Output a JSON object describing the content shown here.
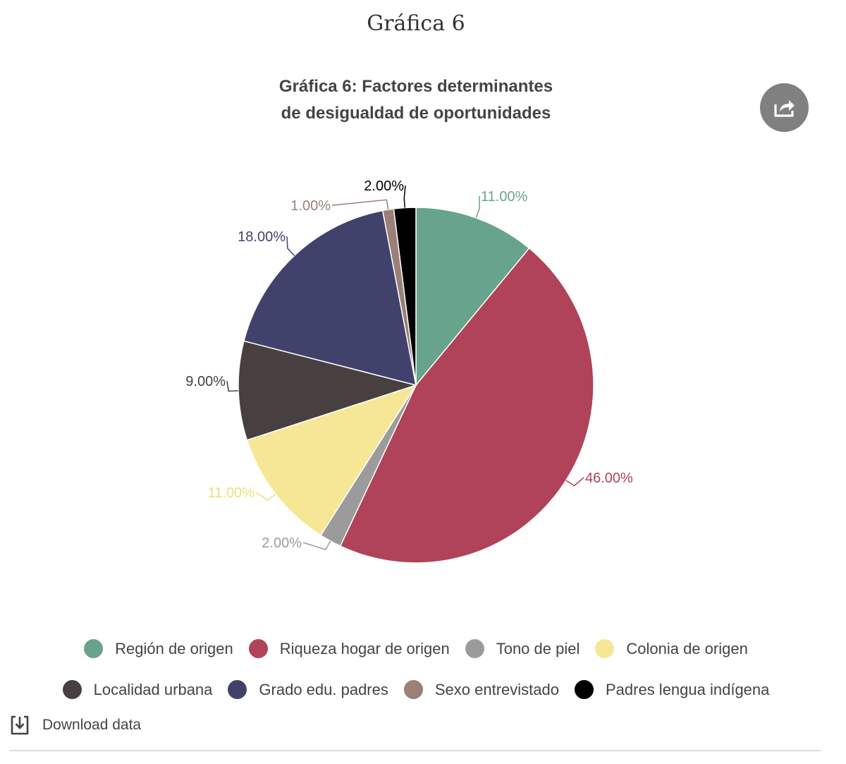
{
  "page": {
    "heading": "Gráfica 6"
  },
  "share": {
    "icon": "share-icon"
  },
  "chart_data": {
    "type": "pie",
    "title_lines": [
      "Gráfica 6: Factores determinantes",
      "de desigualdad de oportunidades"
    ],
    "slices": [
      {
        "name": "Región de origen",
        "value": 11,
        "label": "11.00%",
        "color": "#68a38c"
      },
      {
        "name": "Riqueza hogar de origen",
        "value": 46,
        "label": "46.00%",
        "color": "#b0425a"
      },
      {
        "name": "Tono de piel",
        "value": 2,
        "label": "2.00%",
        "color": "#9b9b9b"
      },
      {
        "name": "Colonia de origen",
        "value": 11,
        "label": "11.00%",
        "color": "#f5e795"
      },
      {
        "name": "Localidad urbana",
        "value": 9,
        "label": "9.00%",
        "color": "#473f40"
      },
      {
        "name": "Grado edu. padres",
        "value": 18,
        "label": "18.00%",
        "color": "#41426c"
      },
      {
        "name": "Sexo entrevistado",
        "value": 1,
        "label": "1.00%",
        "color": "#9a8077"
      },
      {
        "name": "Padres lengua indígena",
        "value": 2,
        "label": "2.00%",
        "color": "#000000"
      }
    ],
    "legend": {
      "placement": "bottom"
    }
  },
  "download": {
    "label": "Download data",
    "icon": "download-icon"
  }
}
